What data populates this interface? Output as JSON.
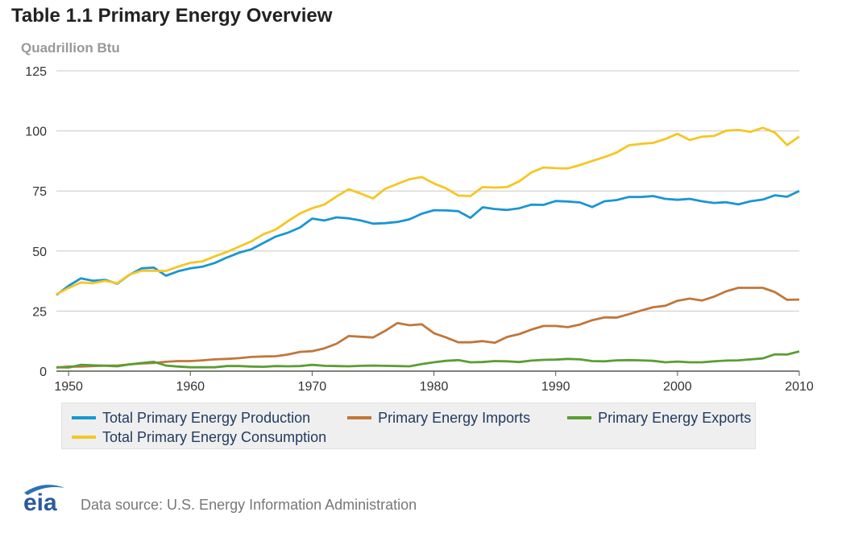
{
  "header": {
    "title": "Table 1.1 Primary Energy Overview",
    "units": "Quadrillion Btu"
  },
  "footer": {
    "logo_text": "eia",
    "source": "Data source: U.S. Energy Information Administration"
  },
  "chart_data": {
    "type": "line",
    "ylabel": "Quadrillion Btu",
    "ylim": [
      0,
      125
    ],
    "xlim": [
      1949,
      2010
    ],
    "yticks": [
      0,
      25,
      50,
      75,
      100,
      125
    ],
    "xticks": [
      1950,
      1960,
      1970,
      1980,
      1990,
      2000,
      2010
    ],
    "grid": true,
    "legend_position": "bottom",
    "x": [
      1949,
      1950,
      1951,
      1952,
      1953,
      1954,
      1955,
      1956,
      1957,
      1958,
      1959,
      1960,
      1961,
      1962,
      1963,
      1964,
      1965,
      1966,
      1967,
      1968,
      1969,
      1970,
      1971,
      1972,
      1973,
      1974,
      1975,
      1976,
      1977,
      1978,
      1979,
      1980,
      1981,
      1982,
      1983,
      1984,
      1985,
      1986,
      1987,
      1988,
      1989,
      1990,
      1991,
      1992,
      1993,
      1994,
      1995,
      1996,
      1997,
      1998,
      1999,
      2000,
      2001,
      2002,
      2003,
      2004,
      2005,
      2006,
      2007,
      2008,
      2009,
      2010
    ],
    "series": [
      {
        "name": "Total Primary Energy Production",
        "color": "#1a96d2",
        "values": [
          31.7,
          35.5,
          38.6,
          37.6,
          38.0,
          36.4,
          40.1,
          42.8,
          43.1,
          39.7,
          41.6,
          42.8,
          43.5,
          45.0,
          47.3,
          49.3,
          50.7,
          53.4,
          56.0,
          57.6,
          59.8,
          63.5,
          62.7,
          64.0,
          63.6,
          62.7,
          61.4,
          61.6,
          62.1,
          63.2,
          65.5,
          67.0,
          66.9,
          66.6,
          63.8,
          68.2,
          67.5,
          67.1,
          67.8,
          69.3,
          69.2,
          70.8,
          70.6,
          70.2,
          68.3,
          70.7,
          71.2,
          72.5,
          72.5,
          72.9,
          71.7,
          71.3,
          71.7,
          70.7,
          70.0,
          70.3,
          69.4,
          70.7,
          71.4,
          73.2,
          72.6,
          75.0
        ]
      },
      {
        "name": "Primary Energy Imports",
        "color": "#c0773a",
        "values": [
          1.5,
          1.9,
          1.9,
          2.1,
          2.3,
          2.3,
          2.8,
          3.2,
          3.4,
          3.9,
          4.2,
          4.2,
          4.5,
          4.9,
          5.1,
          5.4,
          5.9,
          6.1,
          6.2,
          6.9,
          8.0,
          8.3,
          9.5,
          11.4,
          14.6,
          14.3,
          14.0,
          16.8,
          20.0,
          19.1,
          19.5,
          15.8,
          14.0,
          12.0,
          12.0,
          12.5,
          11.8,
          14.2,
          15.4,
          17.3,
          18.8,
          18.8,
          18.3,
          19.4,
          21.2,
          22.4,
          22.3,
          23.7,
          25.2,
          26.6,
          27.2,
          29.3,
          30.2,
          29.4,
          31.0,
          33.2,
          34.7,
          34.7,
          34.7,
          32.9,
          29.7,
          29.8
        ]
      },
      {
        "name": "Primary Energy Exports",
        "color": "#5a9e32",
        "values": [
          1.6,
          1.5,
          2.6,
          2.4,
          2.2,
          2.0,
          2.8,
          3.4,
          3.9,
          2.3,
          1.9,
          1.6,
          1.6,
          1.6,
          2.1,
          2.1,
          1.9,
          1.8,
          2.1,
          2.0,
          2.1,
          2.6,
          2.2,
          2.1,
          2.0,
          2.2,
          2.3,
          2.2,
          2.1,
          2.0,
          2.9,
          3.7,
          4.3,
          4.6,
          3.7,
          3.8,
          4.2,
          4.1,
          3.8,
          4.4,
          4.7,
          4.8,
          5.1,
          4.9,
          4.2,
          4.1,
          4.5,
          4.6,
          4.5,
          4.3,
          3.7,
          4.0,
          3.7,
          3.7,
          4.1,
          4.4,
          4.5,
          4.9,
          5.3,
          7.0,
          6.9,
          8.2
        ]
      },
      {
        "name": "Total Primary Energy Consumption",
        "color": "#f6c623",
        "values": [
          32.0,
          34.6,
          36.9,
          36.6,
          37.6,
          36.6,
          40.2,
          41.8,
          41.8,
          41.7,
          43.5,
          45.1,
          45.7,
          47.8,
          49.6,
          51.8,
          54.0,
          57.0,
          58.9,
          62.4,
          65.6,
          67.8,
          69.3,
          72.7,
          75.7,
          73.9,
          71.9,
          75.9,
          77.9,
          79.9,
          80.8,
          78.1,
          76.1,
          73.1,
          72.9,
          76.6,
          76.4,
          76.6,
          79.0,
          82.7,
          84.8,
          84.5,
          84.4,
          85.8,
          87.5,
          89.1,
          91.0,
          94.0,
          94.6,
          95.0,
          96.6,
          98.8,
          96.2,
          97.6,
          97.9,
          100.1,
          100.4,
          99.6,
          101.3,
          99.3,
          94.1,
          97.7
        ]
      }
    ]
  }
}
